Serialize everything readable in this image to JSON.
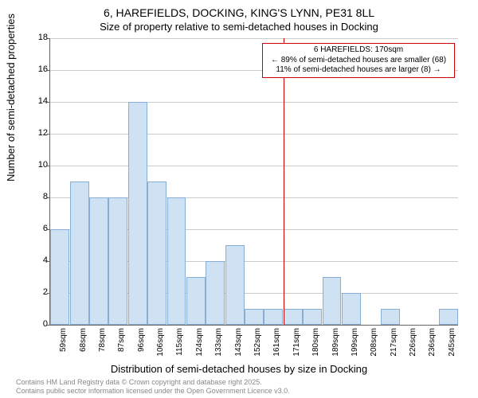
{
  "chart": {
    "type": "histogram",
    "title_line1": "6, HAREFIELDS, DOCKING, KING'S LYNN, PE31 8LL",
    "title_line2": "Size of property relative to semi-detached houses in Docking",
    "ylabel": "Number of semi-detached properties",
    "xlabel": "Distribution of semi-detached houses by size in Docking",
    "background_color": "#ffffff",
    "grid_color": "#cccccc",
    "bar_fill": "#cfe2f3",
    "bar_border": "#88aed6",
    "axis_color": "#666666",
    "text_color": "#000000",
    "ylim": [
      0,
      18
    ],
    "ytick_step": 2,
    "yticks": [
      0,
      2,
      4,
      6,
      8,
      10,
      12,
      14,
      16,
      18
    ],
    "xticks": [
      "59sqm",
      "68sqm",
      "78sqm",
      "87sqm",
      "96sqm",
      "106sqm",
      "115sqm",
      "124sqm",
      "133sqm",
      "143sqm",
      "152sqm",
      "161sqm",
      "171sqm",
      "180sqm",
      "189sqm",
      "199sqm",
      "208sqm",
      "217sqm",
      "226sqm",
      "236sqm",
      "245sqm"
    ],
    "bars": [
      6,
      9,
      8,
      8,
      14,
      9,
      8,
      3,
      4,
      5,
      1,
      1,
      1,
      1,
      3,
      2,
      0,
      1,
      0,
      0,
      1
    ],
    "marker": {
      "color": "#cc0000",
      "position_index": 12,
      "annot_line1": "6 HAREFIELDS: 170sqm",
      "annot_line2": "← 89% of semi-detached houses are smaller (68)",
      "annot_line3": "11% of semi-detached houses are larger (8) →"
    },
    "footer_line1": "Contains HM Land Registry data © Crown copyright and database right 2025.",
    "footer_line2": "Contains public sector information licensed under the Open Government Licence v3.0.",
    "title_fontsize": 14,
    "subtitle_fontsize": 13,
    "label_fontsize": 13,
    "tick_fontsize": 11,
    "annot_fontsize": 10,
    "footer_fontsize": 9,
    "footer_color": "#888888"
  }
}
